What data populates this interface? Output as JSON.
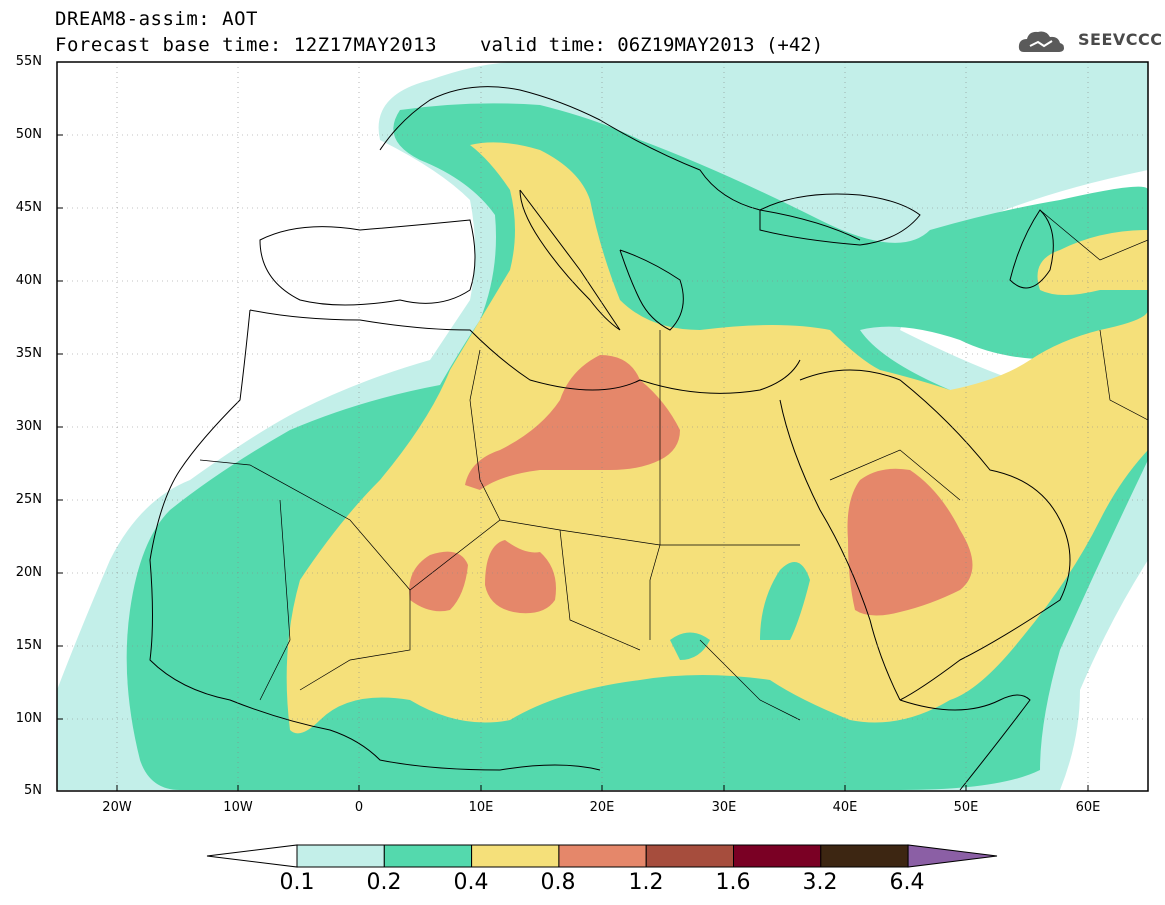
{
  "header": {
    "title_line1": "DREAM8-assim: AOT",
    "title_line2": "Forecast base time: 12Z17MAY2013",
    "valid_time": "valid time: 06Z19MAY2013 (+42)",
    "logo_text": "SEEVCCC",
    "logo_icon": "cloud-icon"
  },
  "axes": {
    "lat_labels": [
      "55N",
      "50N",
      "45N",
      "40N",
      "35N",
      "30N",
      "25N",
      "20N",
      "15N",
      "10N",
      "5N"
    ],
    "lon_labels": [
      "20W",
      "10W",
      "0",
      "10E",
      "20E",
      "30E",
      "40E",
      "50E",
      "60E"
    ]
  },
  "colorbar": {
    "labels": [
      "0.1",
      "0.2",
      "0.4",
      "0.8",
      "1.2",
      "1.6",
      "3.2",
      "6.4"
    ],
    "colors": [
      "#ffffff",
      "#c3efe9",
      "#54d9ad",
      "#f5e07a",
      "#e5876a",
      "#a64d3d",
      "#7a0024",
      "#3d2612",
      "#8b5fa5"
    ]
  },
  "colors": {
    "aot_0_1": "#c3efe9",
    "aot_0_2": "#54d9ad",
    "aot_0_4": "#f5e07a",
    "aot_0_8": "#e5876a"
  }
}
